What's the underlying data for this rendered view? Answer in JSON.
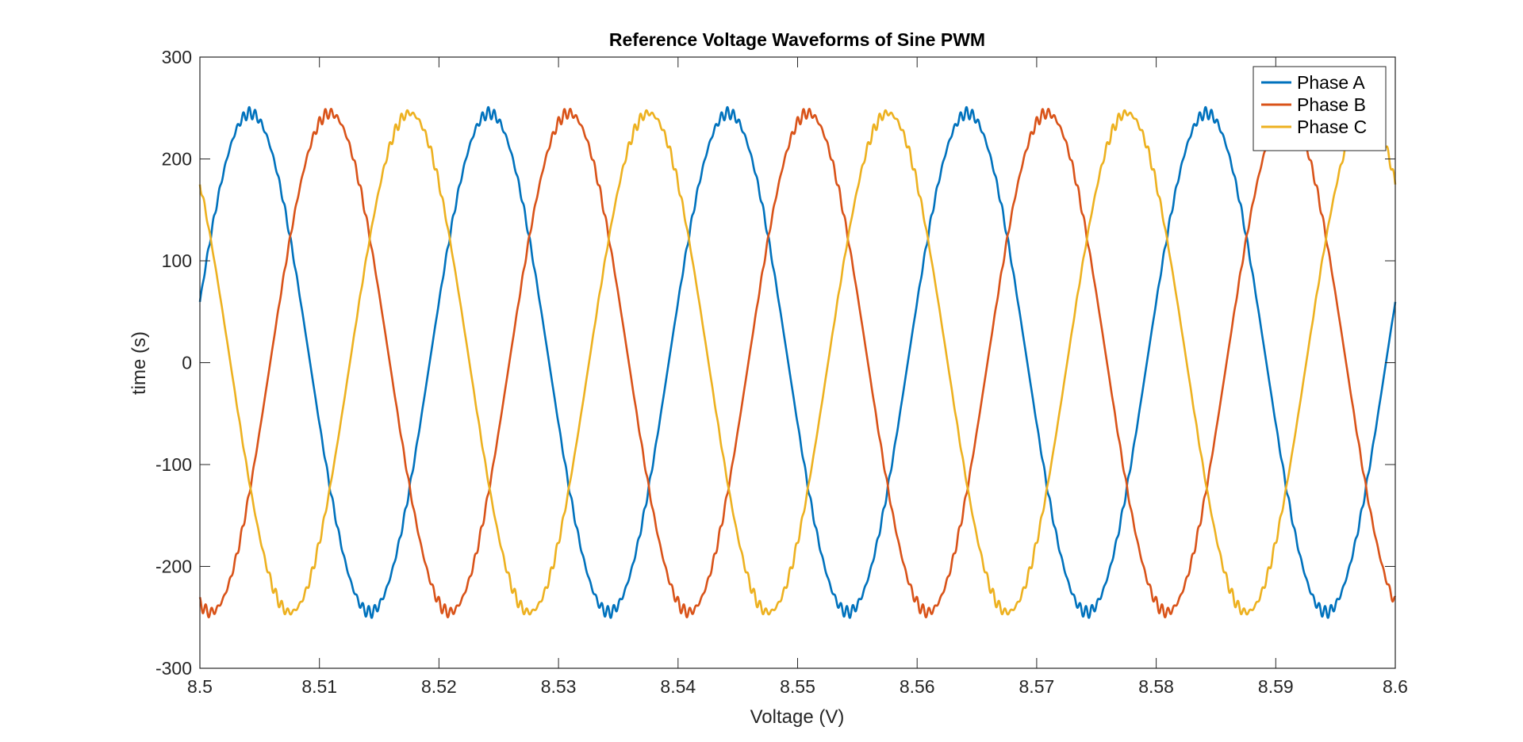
{
  "chart_data": {
    "type": "line",
    "title": "Reference Voltage Waveforms of Sine PWM",
    "xlabel": "Voltage (V)",
    "ylabel": "time (s)",
    "xlim": [
      8.5,
      8.6
    ],
    "ylim": [
      -300,
      300
    ],
    "x_ticks": [
      8.5,
      8.51,
      8.52,
      8.53,
      8.54,
      8.55,
      8.56,
      8.57,
      8.58,
      8.59,
      8.6
    ],
    "x_tick_labels": [
      "8.5",
      "8.51",
      "8.52",
      "8.53",
      "8.54",
      "8.55",
      "8.56",
      "8.57",
      "8.58",
      "8.59",
      "8.6"
    ],
    "y_ticks": [
      300,
      200,
      100,
      0,
      -100,
      -200,
      -300
    ],
    "y_tick_labels": [
      "300",
      "200",
      "100",
      "0",
      "-100",
      "-200",
      "-300"
    ],
    "grid": false,
    "legend_position": "top-right",
    "waveform": {
      "amplitude": 245,
      "frequency_hz": 50,
      "sample_step": 2e-05,
      "ripple_amplitude": 6
    },
    "series": [
      {
        "name": "Phase A",
        "color": "#0072BD",
        "phase_deg": 14.1
      },
      {
        "name": "Phase B",
        "color": "#D95319",
        "phase_deg": -105.9
      },
      {
        "name": "Phase C",
        "color": "#EDB120",
        "phase_deg": 134.1
      }
    ]
  }
}
